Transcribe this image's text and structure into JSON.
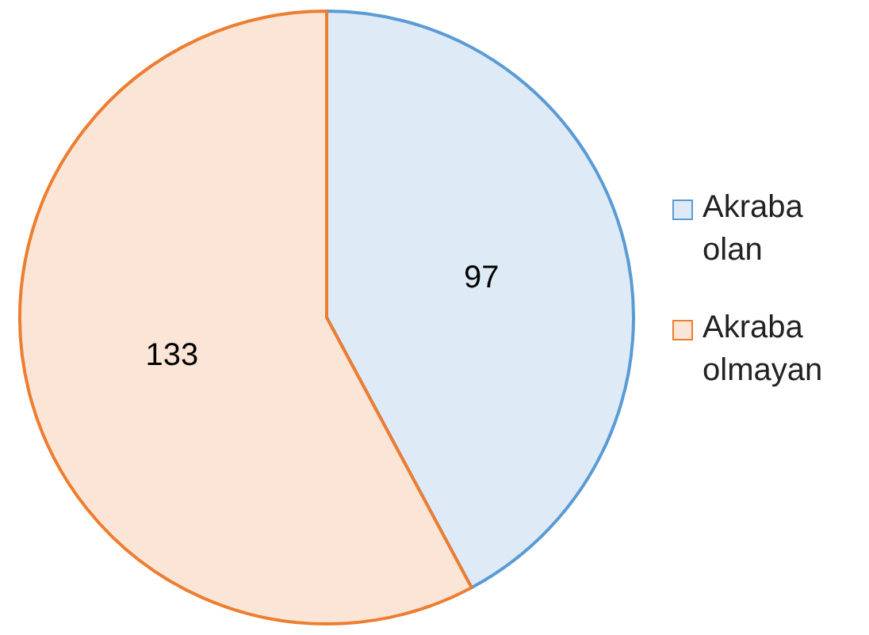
{
  "chart_data": {
    "type": "pie",
    "categories": [
      "Akraba olan",
      "Akraba olmayan"
    ],
    "values": [
      97,
      133
    ],
    "colors": [
      "#5b9bd5",
      "#ed7d31"
    ],
    "data_labels": true,
    "legend": "right"
  }
}
